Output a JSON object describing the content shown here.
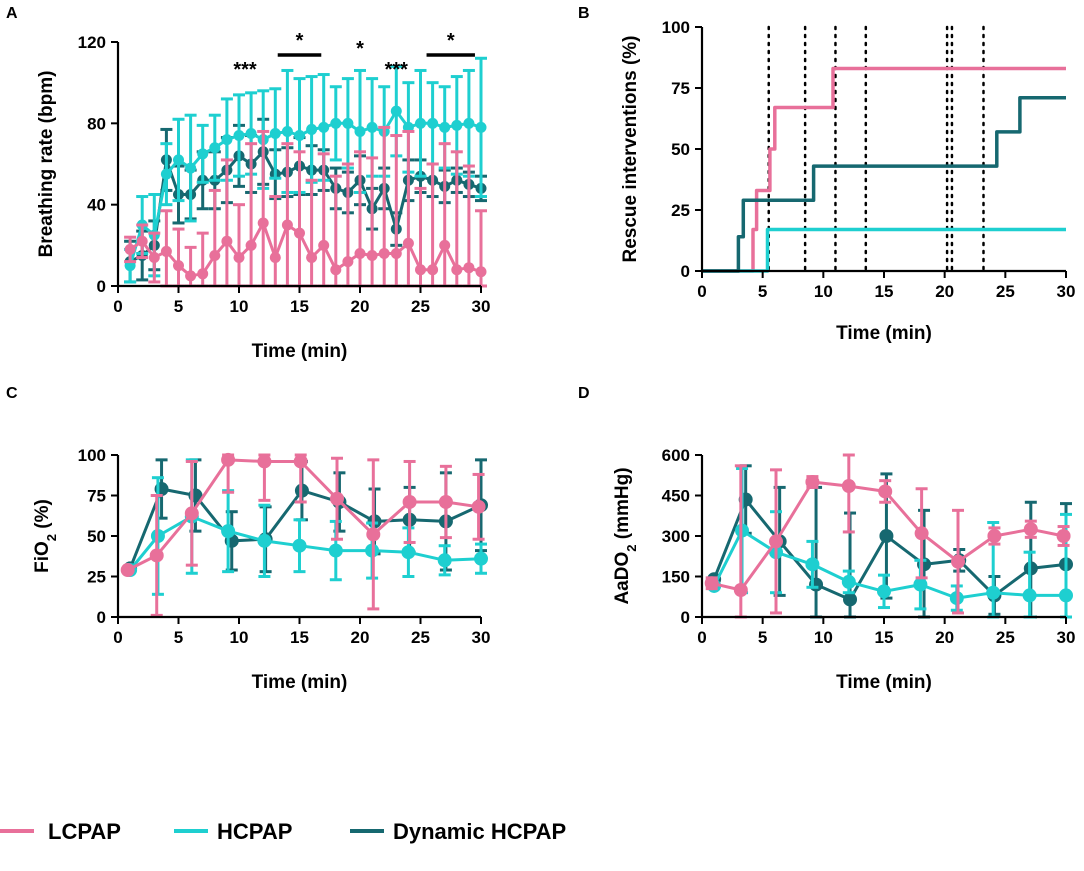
{
  "colors": {
    "lcpap": "#e8709a",
    "hcpap": "#1ecfd0",
    "dynamic": "#166870"
  },
  "legend": [
    {
      "key": "lcpap",
      "label": "LCPAP"
    },
    {
      "key": "hcpap",
      "label": "HCPAP"
    },
    {
      "key": "dynamic",
      "label": "Dynamic HCPAP"
    }
  ],
  "chart_data": [
    {
      "panel": "A",
      "type": "line",
      "xlabel": "Time (min)",
      "ylabel": "Breathing rate (bpm)",
      "xlim": [
        0,
        30
      ],
      "ylim": [
        0,
        120
      ],
      "xticks": [
        0,
        5,
        10,
        15,
        20,
        25,
        30
      ],
      "yticks": [
        0,
        40,
        80,
        120
      ],
      "significance": [
        {
          "label": "***",
          "x": 10.5
        },
        {
          "label": "*",
          "x": 15,
          "bar": [
            13.2,
            16.8
          ]
        },
        {
          "label": "*",
          "x": 20
        },
        {
          "label": "***",
          "x": 23
        },
        {
          "label": "*",
          "x": 27.5,
          "bar": [
            25.5,
            29.5
          ]
        }
      ],
      "series": [
        {
          "key": "dynamic",
          "name": "Dynamic HCPAP",
          "x": [
            1,
            2,
            3,
            4,
            5,
            6,
            7,
            8,
            9,
            10,
            11,
            12,
            13,
            14,
            15,
            16,
            17,
            18,
            19,
            20,
            21,
            22,
            23,
            24,
            25,
            26,
            27,
            28,
            29,
            30
          ],
          "y": [
            12,
            15,
            20,
            62,
            45,
            45,
            52,
            52,
            57,
            64,
            60,
            66,
            55,
            56,
            59,
            57,
            57,
            48,
            46,
            52,
            38,
            48,
            28,
            52,
            54,
            52,
            49,
            52,
            50,
            48
          ],
          "err": [
            10,
            12,
            12,
            15,
            14,
            12,
            14,
            14,
            16,
            15,
            14,
            16,
            12,
            12,
            14,
            12,
            10,
            10,
            10,
            12,
            10,
            10,
            8,
            10,
            8,
            8,
            8,
            6,
            6,
            6
          ]
        },
        {
          "key": "hcpap",
          "name": "HCPAP",
          "x": [
            1,
            2,
            3,
            4,
            5,
            6,
            7,
            8,
            9,
            10,
            11,
            12,
            13,
            14,
            15,
            16,
            17,
            18,
            19,
            20,
            21,
            22,
            23,
            24,
            25,
            26,
            27,
            28,
            29,
            30
          ],
          "y": [
            10,
            30,
            25,
            55,
            62,
            58,
            65,
            68,
            72,
            74,
            75,
            72,
            75,
            76,
            74,
            77,
            78,
            80,
            80,
            76,
            78,
            76,
            86,
            78,
            80,
            80,
            78,
            79,
            80,
            78
          ],
          "err": [
            8,
            14,
            20,
            15,
            20,
            26,
            14,
            16,
            20,
            20,
            20,
            24,
            22,
            30,
            28,
            26,
            26,
            18,
            22,
            30,
            24,
            22,
            22,
            22,
            26,
            20,
            20,
            24,
            26,
            34
          ]
        },
        {
          "key": "lcpap",
          "name": "LCPAP",
          "x": [
            1,
            2,
            3,
            4,
            5,
            6,
            7,
            8,
            9,
            10,
            11,
            12,
            13,
            14,
            15,
            16,
            17,
            18,
            19,
            20,
            21,
            22,
            23,
            24,
            25,
            26,
            27,
            28,
            29,
            30
          ],
          "y": [
            18,
            22,
            14,
            17,
            10,
            5,
            6,
            15,
            22,
            14,
            20,
            31,
            14,
            30,
            26,
            14,
            20,
            8,
            12,
            16,
            15,
            16,
            16,
            21,
            8,
            8,
            20,
            8,
            9,
            7
          ],
          "err": [
            6,
            8,
            12,
            20,
            18,
            14,
            20,
            32,
            40,
            26,
            50,
            45,
            30,
            40,
            40,
            38,
            45,
            46,
            48,
            50,
            48,
            62,
            58,
            55,
            40,
            52,
            50,
            58,
            50,
            30
          ]
        }
      ]
    },
    {
      "panel": "B",
      "type": "line",
      "xlabel": "Time (min)",
      "ylabel": "Rescue interventions (%)",
      "xlim": [
        0,
        30
      ],
      "ylim": [
        0,
        100
      ],
      "xticks": [
        0,
        5,
        10,
        15,
        20,
        25,
        30
      ],
      "yticks": [
        0,
        25,
        50,
        75,
        100
      ],
      "vlines": [
        5.5,
        8.5,
        11,
        13.5,
        20.2,
        20.6,
        23.2
      ],
      "series": [
        {
          "key": "lcpap",
          "name": "LCPAP",
          "x": [
            0,
            4.2,
            4.2,
            4.5,
            4.5,
            5.6,
            5.6,
            6,
            6,
            9.5,
            9.5,
            10.8,
            10.8,
            30
          ],
          "y": [
            0,
            0,
            17,
            17,
            33,
            33,
            50,
            50,
            67,
            67,
            67,
            67,
            83,
            83
          ]
        },
        {
          "key": "hcpap",
          "name": "HCPAP",
          "x": [
            0,
            5.4,
            5.4,
            30
          ],
          "y": [
            0,
            0,
            17,
            17
          ]
        },
        {
          "key": "dynamic",
          "name": "Dynamic HCPAP",
          "x": [
            0,
            3,
            3,
            3.4,
            3.4,
            9.2,
            9.2,
            24.3,
            24.3,
            26.2,
            26.2,
            30
          ],
          "y": [
            0,
            0,
            14,
            14,
            29,
            29,
            43,
            43,
            57,
            57,
            71,
            71
          ]
        }
      ]
    },
    {
      "panel": "C",
      "type": "line",
      "xlabel": "Time (min)",
      "ylabel": "FiO2 (%)",
      "xlim": [
        0,
        30
      ],
      "ylim": [
        0,
        100
      ],
      "xticks": [
        0,
        5,
        10,
        15,
        20,
        25,
        30
      ],
      "yticks": [
        0,
        25,
        50,
        75,
        100
      ],
      "series": [
        {
          "key": "dynamic",
          "name": "Dynamic HCPAP",
          "x": [
            1,
            3.6,
            6.4,
            9.4,
            12.2,
            15.2,
            18.3,
            21.2,
            24.1,
            27.1,
            30
          ],
          "y": [
            30,
            79,
            75,
            47,
            48,
            78,
            71,
            59,
            60,
            59,
            69
          ],
          "err": [
            1,
            18,
            22,
            18,
            20,
            18,
            18,
            20,
            20,
            30,
            28
          ]
        },
        {
          "key": "hcpap",
          "name": "HCPAP",
          "x": [
            1,
            3.3,
            6.1,
            9.1,
            12.1,
            15,
            18,
            21,
            24,
            27,
            30
          ],
          "y": [
            29,
            50,
            62,
            53,
            47,
            44,
            41,
            41,
            40,
            35,
            36
          ],
          "err": [
            1,
            36,
            35,
            25,
            22,
            16,
            18,
            17,
            15,
            9,
            9
          ]
        },
        {
          "key": "lcpap",
          "name": "LCPAP",
          "x": [
            0.8,
            3.2,
            6.1,
            9.1,
            12.1,
            15.1,
            18.1,
            21.1,
            24.1,
            27.1,
            29.8
          ],
          "y": [
            29,
            38,
            64,
            97,
            96,
            96,
            73,
            51,
            71,
            71,
            68
          ],
          "err": [
            1,
            37,
            32,
            20,
            24,
            25,
            25,
            46,
            25,
            22,
            20
          ]
        }
      ]
    },
    {
      "panel": "D",
      "type": "line",
      "xlabel": "Time (min)",
      "ylabel": "AaDO2 (mmHg)",
      "xlim": [
        0,
        30
      ],
      "ylim": [
        0,
        600
      ],
      "xticks": [
        0,
        5,
        10,
        15,
        20,
        25,
        30
      ],
      "yticks": [
        0,
        150,
        300,
        450,
        600
      ],
      "series": [
        {
          "key": "dynamic",
          "name": "Dynamic HCPAP",
          "x": [
            1,
            3.6,
            6.4,
            9.4,
            12.2,
            15.2,
            18.3,
            21.2,
            24.1,
            27.1,
            30
          ],
          "y": [
            140,
            435,
            280,
            120,
            65,
            300,
            195,
            210,
            80,
            180,
            195
          ],
          "err": [
            5,
            125,
            200,
            360,
            320,
            230,
            200,
            40,
            70,
            245,
            225
          ]
        },
        {
          "key": "hcpap",
          "name": "HCPAP",
          "x": [
            1,
            3.3,
            6.1,
            9.1,
            12.1,
            15,
            18,
            21,
            24,
            27,
            30
          ],
          "y": [
            115,
            320,
            240,
            195,
            130,
            95,
            120,
            70,
            90,
            80,
            80
          ],
          "err": [
            5,
            230,
            150,
            85,
            40,
            60,
            90,
            45,
            260,
            160,
            300
          ]
        },
        {
          "key": "lcpap",
          "name": "LCPAP",
          "x": [
            0.8,
            3.2,
            6.1,
            9.1,
            12.1,
            15.1,
            18.1,
            21.1,
            24.1,
            27.1,
            29.8
          ],
          "y": [
            125,
            100,
            280,
            500,
            485,
            465,
            310,
            205,
            300,
            325,
            300
          ],
          "err": [
            20,
            460,
            265,
            20,
            170,
            40,
            165,
            190,
            30,
            30,
            35
          ]
        }
      ]
    }
  ]
}
